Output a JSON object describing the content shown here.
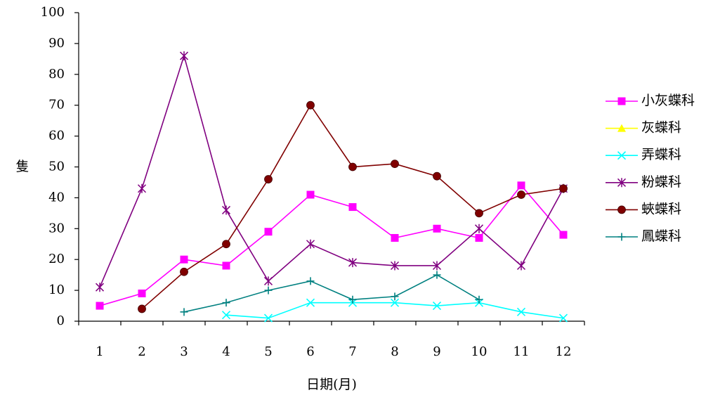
{
  "chart_data": {
    "type": "line",
    "title": "",
    "xlabel": "日期(月)",
    "ylabel": "隻",
    "ylim": [
      0,
      100
    ],
    "yticks": [
      0,
      10,
      20,
      30,
      40,
      50,
      60,
      70,
      80,
      90,
      100
    ],
    "categories": [
      "1",
      "2",
      "3",
      "4",
      "5",
      "6",
      "7",
      "8",
      "9",
      "10",
      "11",
      "12"
    ],
    "grid": false,
    "legend_position": "right",
    "series": [
      {
        "name": "小灰蝶科",
        "color": "#ff00ff",
        "marker": "square",
        "values": [
          5,
          9,
          20,
          18,
          29,
          41,
          37,
          27,
          30,
          27,
          44,
          28
        ]
      },
      {
        "name": "灰蝶科",
        "color": "#ffff00",
        "marker": "triangle",
        "values": [
          null,
          null,
          null,
          null,
          null,
          null,
          null,
          null,
          null,
          null,
          null,
          null
        ]
      },
      {
        "name": "弄蝶科",
        "color": "#00ffff",
        "marker": "x",
        "values": [
          null,
          null,
          null,
          2,
          1,
          6,
          6,
          6,
          5,
          6,
          3,
          1
        ]
      },
      {
        "name": "粉蝶科",
        "color": "#800080",
        "marker": "asterisk",
        "values": [
          11,
          43,
          86,
          36,
          13,
          25,
          19,
          18,
          18,
          30,
          18,
          43
        ]
      },
      {
        "name": "蛺蝶科",
        "color": "#800000",
        "marker": "circle",
        "values": [
          null,
          4,
          16,
          25,
          46,
          70,
          50,
          51,
          47,
          35,
          41,
          43
        ]
      },
      {
        "name": "鳳蝶科",
        "color": "#008080",
        "marker": "plus",
        "values": [
          null,
          null,
          3,
          6,
          10,
          13,
          7,
          8,
          15,
          7,
          null,
          null
        ]
      }
    ]
  }
}
